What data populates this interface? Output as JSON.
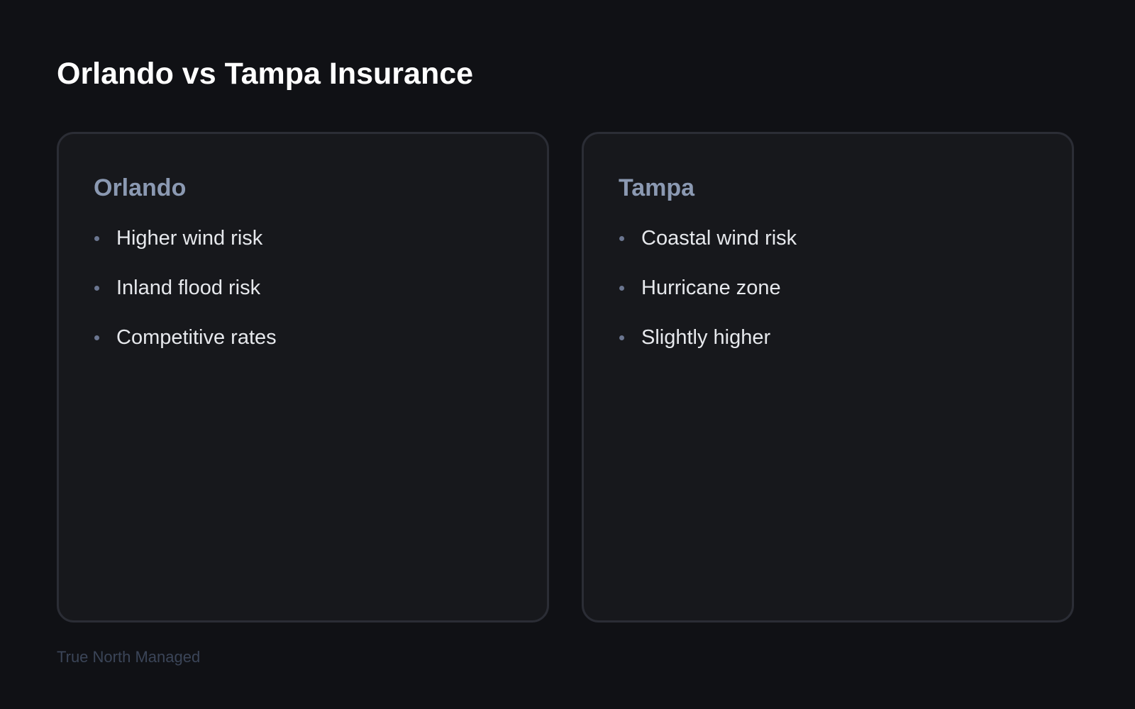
{
  "page": {
    "title": "Orlando vs Tampa Insurance",
    "footer": "True North Managed"
  },
  "cards": [
    {
      "heading": "Orlando",
      "items": [
        "Higher wind risk",
        "Inland flood risk",
        "Competitive rates"
      ]
    },
    {
      "heading": "Tampa",
      "items": [
        "Coastal wind risk",
        "Hurricane zone",
        "Slightly higher"
      ]
    }
  ],
  "colors": {
    "background": "#101115",
    "card": "#17181c",
    "card_border": "#2b2d35",
    "heading": "#8b99b2",
    "text": "#e6e8ec",
    "footer": "#3b4558"
  }
}
